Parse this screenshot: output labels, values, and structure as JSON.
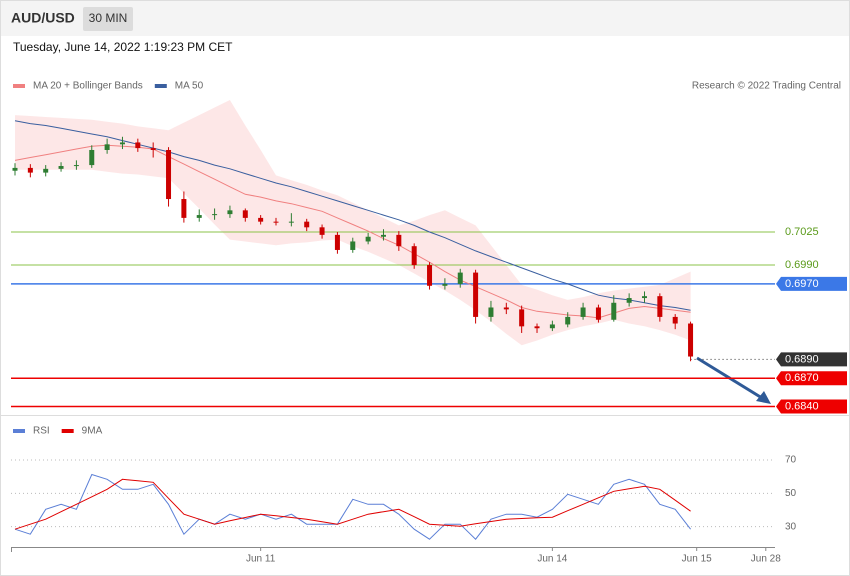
{
  "header": {
    "symbol": "AUD/USD",
    "interval": "30 MIN",
    "timestamp": "Tuesday, June 14, 2022 1:19:23 PM CET"
  },
  "chart_data": [
    {
      "type": "candlestick",
      "credit": "Research © 2022 Trading Central",
      "up_color": "#2e7d32",
      "down_color": "#cc0000",
      "xlim": [
        -0.26,
        49.5
      ],
      "ylim": [
        0.6831,
        0.7165
      ],
      "open": [
        0.709,
        0.7093,
        0.7088,
        0.7092,
        0.7095,
        0.7096,
        0.7112,
        0.7118,
        0.712,
        0.7114,
        0.7112,
        0.706,
        0.704,
        0.7043,
        0.7044,
        0.7048,
        0.704,
        0.7036,
        0.7035,
        0.7036,
        0.703,
        0.7022,
        0.7006,
        0.7015,
        0.702,
        0.7022,
        0.701,
        0.699,
        0.6968,
        0.697,
        0.6982,
        0.6935,
        0.6945,
        0.6943,
        0.6925,
        0.6923,
        0.6927,
        0.6935,
        0.6945,
        0.6932,
        0.695,
        0.6955,
        0.6957,
        0.6935,
        0.6928
      ],
      "high": [
        0.7098,
        0.7097,
        0.7096,
        0.7099,
        0.7101,
        0.7117,
        0.7124,
        0.7126,
        0.7124,
        0.712,
        0.7115,
        0.7068,
        0.7049,
        0.705,
        0.7053,
        0.705,
        0.7043,
        0.704,
        0.7045,
        0.7039,
        0.7033,
        0.7025,
        0.7019,
        0.7024,
        0.7028,
        0.7026,
        0.7013,
        0.6993,
        0.6976,
        0.6986,
        0.6985,
        0.6952,
        0.695,
        0.6947,
        0.6928,
        0.6931,
        0.694,
        0.695,
        0.6948,
        0.6958,
        0.696,
        0.6962,
        0.696,
        0.6938,
        0.693
      ],
      "low": [
        0.7085,
        0.7083,
        0.7084,
        0.7089,
        0.7091,
        0.7093,
        0.7108,
        0.7113,
        0.711,
        0.7104,
        0.7052,
        0.7035,
        0.7036,
        0.7038,
        0.704,
        0.7036,
        0.7033,
        0.7032,
        0.7031,
        0.7026,
        0.7018,
        0.7002,
        0.7003,
        0.7012,
        0.7016,
        0.7005,
        0.6986,
        0.6964,
        0.6964,
        0.6966,
        0.6928,
        0.693,
        0.6938,
        0.6918,
        0.6918,
        0.692,
        0.6924,
        0.6932,
        0.6929,
        0.693,
        0.6946,
        0.695,
        0.693,
        0.6922,
        0.6888
      ],
      "close": [
        0.7093,
        0.7088,
        0.7092,
        0.7095,
        0.7096,
        0.7112,
        0.7118,
        0.712,
        0.7114,
        0.7112,
        0.706,
        0.704,
        0.7043,
        0.7044,
        0.7048,
        0.704,
        0.7036,
        0.7035,
        0.7036,
        0.703,
        0.7022,
        0.7006,
        0.7015,
        0.702,
        0.7022,
        0.701,
        0.699,
        0.6968,
        0.697,
        0.6982,
        0.6935,
        0.6945,
        0.6943,
        0.6925,
        0.6923,
        0.6927,
        0.6935,
        0.6945,
        0.6932,
        0.695,
        0.6955,
        0.6957,
        0.6935,
        0.6928,
        0.6893
      ],
      "series": [
        {
          "name": "MA 20 + Bollinger Bands",
          "color": "#f08080",
          "band_color": "#fde3e3",
          "values": [
            0.7101,
            0.7104,
            0.7107,
            0.711,
            0.7113,
            0.7116,
            0.7117,
            0.7116,
            0.7115,
            0.7113,
            0.7105,
            0.7097,
            0.7089,
            0.7081,
            0.7073,
            0.7065,
            0.7062,
            0.7058,
            0.7055,
            0.7051,
            0.7047,
            0.704,
            0.7033,
            0.7026,
            0.7018,
            0.7011,
            0.7002,
            0.6993,
            0.6983,
            0.6974,
            0.6967,
            0.696,
            0.6953,
            0.6945,
            0.6941,
            0.6939,
            0.6937,
            0.6936,
            0.6934,
            0.6939,
            0.6944,
            0.6946,
            0.6944,
            0.6942,
            0.694
          ],
          "upper": [
            0.7149,
            0.7148,
            0.7147,
            0.7146,
            0.7145,
            0.7144,
            0.7142,
            0.714,
            0.7137,
            0.7135,
            0.7133,
            0.7141,
            0.7149,
            0.7157,
            0.7165,
            0.7138,
            0.7112,
            0.7085,
            0.708,
            0.7075,
            0.7069,
            0.7064,
            0.7056,
            0.7048,
            0.704,
            0.7032,
            0.7037,
            0.7043,
            0.7048,
            0.704,
            0.7032,
            0.7011,
            0.699,
            0.6969,
            0.6964,
            0.6958,
            0.6953,
            0.6956,
            0.696,
            0.6963,
            0.6965,
            0.6967,
            0.6969,
            0.6976,
            0.6983
          ],
          "lower": [
            0.7091,
            0.7091,
            0.7091,
            0.7091,
            0.7091,
            0.7091,
            0.7089,
            0.7087,
            0.7086,
            0.7084,
            0.7082,
            0.7066,
            0.705,
            0.7033,
            0.7017,
            0.7015,
            0.7013,
            0.7011,
            0.7013,
            0.7014,
            0.7016,
            0.7017,
            0.701,
            0.7004,
            0.6997,
            0.699,
            0.6981,
            0.6972,
            0.6963,
            0.6953,
            0.6942,
            0.693,
            0.6917,
            0.6905,
            0.691,
            0.6916,
            0.6921,
            0.6925,
            0.6928,
            0.6932,
            0.6928,
            0.6925,
            0.6921,
            0.6916,
            0.691
          ]
        },
        {
          "name": "MA 50",
          "color": "#3a5f9f",
          "values": [
            0.7143,
            0.714,
            0.7138,
            0.7135,
            0.7132,
            0.7129,
            0.7126,
            0.7122,
            0.7118,
            0.7114,
            0.711,
            0.7105,
            0.7101,
            0.7096,
            0.7092,
            0.7087,
            0.7082,
            0.7077,
            0.7073,
            0.7068,
            0.7063,
            0.7058,
            0.7053,
            0.7048,
            0.7043,
            0.7038,
            0.7032,
            0.7025,
            0.7019,
            0.7012,
            0.7005,
            0.6999,
            0.6993,
            0.6987,
            0.6981,
            0.6975,
            0.697,
            0.6964,
            0.6958,
            0.6955,
            0.6953,
            0.695,
            0.6947,
            0.6945,
            0.6942
          ]
        }
      ],
      "levels": [
        {
          "value": 0.7025,
          "label": "0.7025",
          "color": "#8bc34a",
          "text_color": "#5a9a1a",
          "box": false
        },
        {
          "value": 0.699,
          "label": "0.6990",
          "color": "#8bc34a",
          "text_color": "#5a9a1a",
          "box": false
        },
        {
          "value": 0.697,
          "label": "0.6970",
          "color": "#3b78e7",
          "text_color": "#ffffff",
          "box": true
        },
        {
          "value": 0.689,
          "label": "0.6890",
          "color": "#333333",
          "text_color": "#ffffff",
          "box": true,
          "dotted": true
        },
        {
          "value": 0.687,
          "label": "0.6870",
          "color": "#ee0000",
          "text_color": "#ffffff",
          "box": true
        },
        {
          "value": 0.684,
          "label": "0.6840",
          "color": "#ee0000",
          "text_color": "#ffffff",
          "box": true
        }
      ]
    },
    {
      "type": "line",
      "xlim": [
        -0.26,
        49.5
      ],
      "ylim": [
        19,
        94
      ],
      "yticks": [
        30,
        50,
        70
      ],
      "grid": true,
      "xticks": [
        {
          "value": 16.0,
          "label": "Jun 11"
        },
        {
          "value": 35.0,
          "label": "Jun 14"
        },
        {
          "value": 44.4,
          "label": "Jun 15"
        },
        {
          "value": 48.9,
          "label": "Jun 28"
        }
      ],
      "series": [
        {
          "name": "RSI",
          "color": "#5b7fd6",
          "values": [
            28.5,
            25.5,
            40.4,
            43.4,
            40.4,
            61.3,
            58.4,
            52.4,
            52.4,
            55.4,
            43.4,
            25.5,
            34.5,
            31.5,
            37.5,
            34.5,
            37.5,
            34.5,
            37.5,
            31.5,
            31.5,
            31.5,
            46.4,
            43.4,
            43.4,
            37.5,
            28.5,
            22.5,
            31.5,
            31.5,
            22.5,
            34.5,
            37.5,
            37.5,
            35.7,
            40.4,
            49.4,
            46.4,
            43.4,
            55.4,
            58.4,
            55.4,
            43.4,
            40.4,
            28.5
          ]
        },
        {
          "name": "9MA",
          "color": "#e00000",
          "values": [
            28.5,
            31.5,
            34.5,
            39,
            43.4,
            47.9,
            52.4,
            58.4,
            57.5,
            56.6,
            47,
            37.5,
            34.5,
            31.5,
            33.5,
            35.5,
            37.5,
            36.5,
            35.5,
            34.5,
            33,
            31.5,
            34.5,
            37.5,
            39,
            40.4,
            36,
            31.5,
            30.9,
            30.3,
            31.7,
            33.1,
            34.5,
            34.9,
            35.3,
            35.7,
            39.6,
            43.4,
            47.3,
            51.2,
            52.7,
            54.2,
            52.4,
            45.9,
            39.3
          ]
        }
      ]
    }
  ]
}
